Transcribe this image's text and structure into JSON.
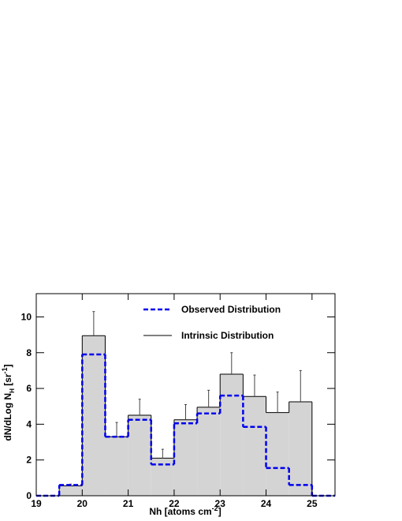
{
  "chart_data": {
    "type": "histogram",
    "xlabel": {
      "text": "Nh [atoms cm",
      "sup": "-2",
      "end": "]"
    },
    "ylabel": {
      "text": "dN/dLog N",
      "sub": "H",
      "mid": " [sr",
      "sup": "-1",
      "end": "]"
    },
    "bins": [
      19,
      19.5,
      20,
      20.5,
      21,
      21.5,
      22,
      22.5,
      23,
      23.5,
      24,
      24.5,
      25,
      25.5
    ],
    "series": [
      {
        "name": "Intrinsic Distribution",
        "color": "#000000",
        "fill": "#d4d4d4",
        "style": "solid",
        "values": [
          0,
          0.55,
          8.95,
          3.3,
          4.5,
          2.1,
          4.25,
          4.95,
          6.8,
          5.55,
          4.65,
          5.25,
          0
        ],
        "errors": [
          null,
          0.1,
          1.35,
          0.8,
          0.9,
          0.5,
          0.85,
          0.95,
          1.2,
          1.2,
          1.15,
          1.75,
          null
        ]
      },
      {
        "name": "Observed Distribution",
        "color": "#0000ee",
        "style": "dashed",
        "values": [
          0,
          0.6,
          7.9,
          3.3,
          4.25,
          1.75,
          4.05,
          4.6,
          5.6,
          3.85,
          1.55,
          0.6,
          0
        ]
      }
    ],
    "xlim": [
      19,
      25.5
    ],
    "ylim": [
      0,
      11.3
    ],
    "xticks": [
      19,
      20,
      21,
      22,
      23,
      24,
      25
    ],
    "yticks": [
      0,
      2,
      4,
      6,
      8,
      10
    ],
    "legend": "top"
  }
}
